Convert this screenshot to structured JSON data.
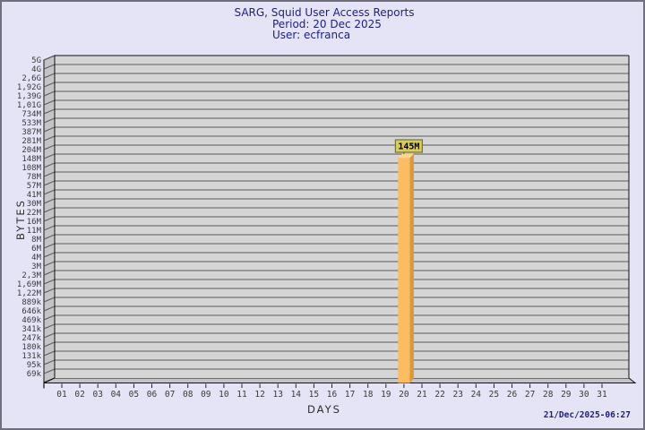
{
  "header": {
    "title": "SARG, Squid User Access Reports",
    "period": "Period: 20 Dec 2025",
    "user": "User: ecfranca"
  },
  "footer": {
    "timestamp": "21/Dec/2025-06:27"
  },
  "chart_data": {
    "type": "bar",
    "style": "3d-single-bar",
    "title": "SARG, Squid User Access Reports",
    "subtitle_lines": [
      "Period: 20 Dec 2025",
      "User: ecfranca"
    ],
    "xlabel": "DAYS",
    "ylabel": "BYTES",
    "grid": "horizontal",
    "x_tick_labels": [
      "01",
      "02",
      "03",
      "04",
      "05",
      "06",
      "07",
      "08",
      "09",
      "10",
      "11",
      "12",
      "13",
      "14",
      "15",
      "16",
      "17",
      "18",
      "19",
      "20",
      "21",
      "22",
      "23",
      "24",
      "25",
      "26",
      "27",
      "28",
      "29",
      "30",
      "31"
    ],
    "y_tick_labels": [
      "5G",
      "4G",
      "2,6G",
      "1,92G",
      "1,39G",
      "1,01G",
      "734M",
      "533M",
      "387M",
      "281M",
      "204M",
      "148M",
      "108M",
      "78M",
      "57M",
      "41M",
      "30M",
      "22M",
      "16M",
      "11M",
      "8M",
      "6M",
      "4M",
      "3M",
      "2,3M",
      "1,69M",
      "1,22M",
      "889k",
      "646k",
      "469k",
      "341k",
      "247k",
      "180k",
      "131k",
      "95k",
      "69k"
    ],
    "bars": [
      {
        "day": "20",
        "label": "145M"
      }
    ],
    "colors": {
      "background": "#e4e4f6",
      "title_text": "#1e1e82",
      "timestamp_text": "#1e1e82",
      "plot_bg": "#d5d5d5",
      "wall": "#c4c4c6",
      "gridline": "#5c5c5c",
      "border": "#111111",
      "axis_text": "#3a3a3a",
      "bar_front": "#fcbc62",
      "bar_side": "#d9993f",
      "bar_top": "#fdd68c",
      "value_box_bg": "#d6ca60",
      "value_box_border": "#76762e",
      "value_text": "#000000"
    }
  }
}
